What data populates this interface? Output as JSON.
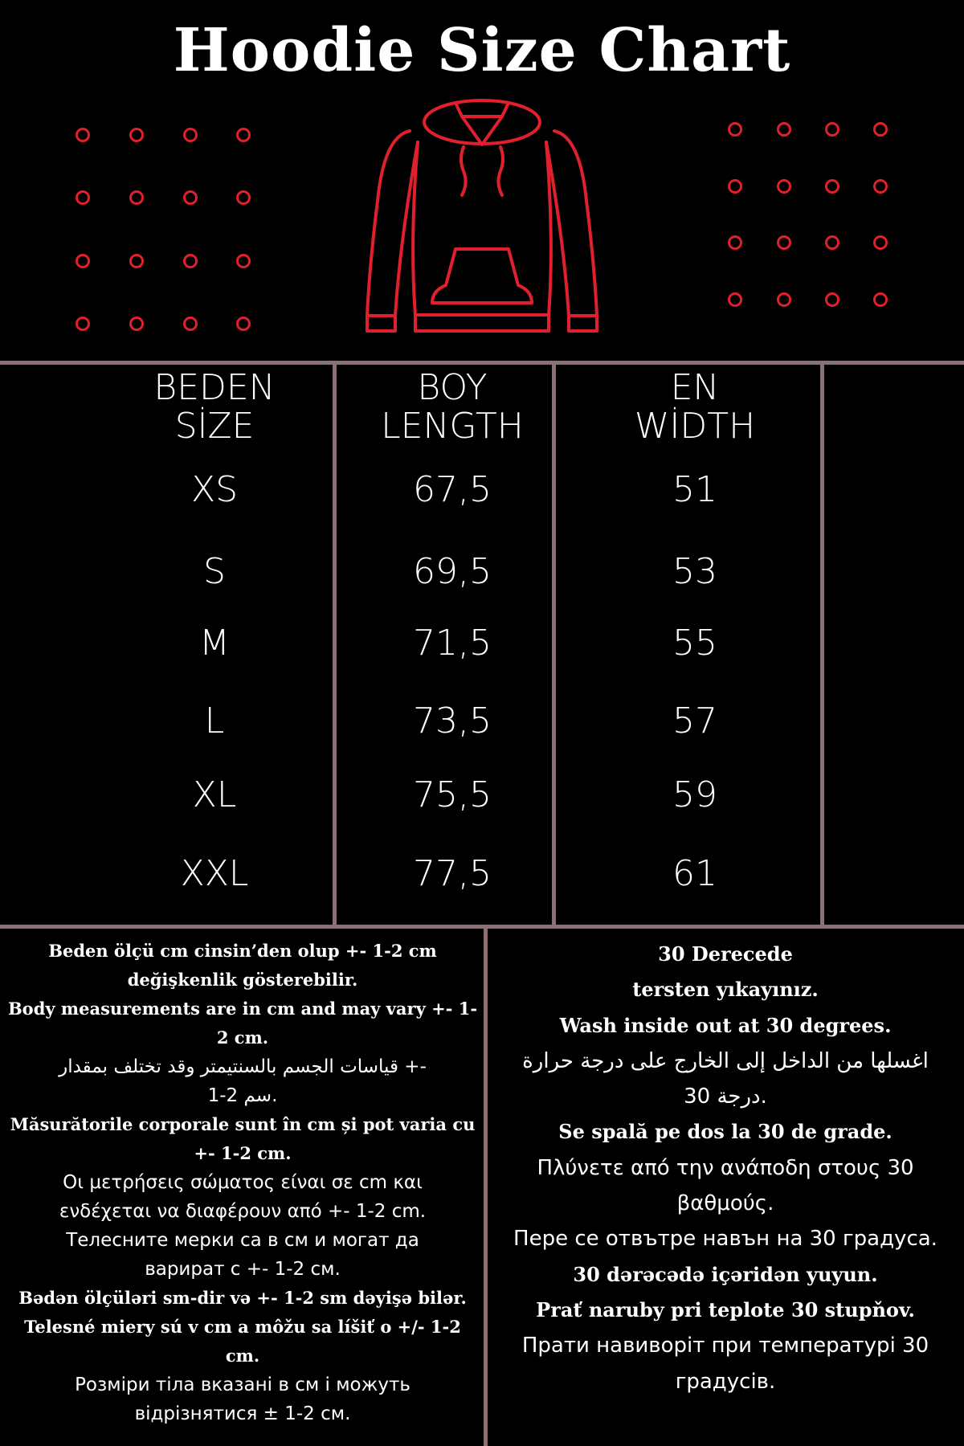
{
  "title": "Hoodie Size Chart",
  "colors": {
    "background": "#000000",
    "accent": "#e0202c",
    "divider": "#8c7074",
    "text": "#ffffff"
  },
  "icons": {
    "hoodie": "hoodie-outline-icon",
    "dots": "circle-dot-icon"
  },
  "table": {
    "headers": [
      {
        "line1": "BEDEN",
        "line2": "SİZE"
      },
      {
        "line1": "BOY",
        "line2": "LENGTH"
      },
      {
        "line1": "EN",
        "line2": "WİDTH"
      }
    ],
    "rows": [
      {
        "size": "XS",
        "length": "67,5",
        "width": "51"
      },
      {
        "size": "S",
        "length": "69,5",
        "width": "53"
      },
      {
        "size": "M",
        "length": "71,5",
        "width": "55"
      },
      {
        "size": "L",
        "length": "73,5",
        "width": "57"
      },
      {
        "size": "XL",
        "length": "75,5",
        "width": "59"
      },
      {
        "size": "XXL",
        "length": "77,5",
        "width": "61"
      }
    ]
  },
  "notes_left": [
    {
      "style": "serif",
      "text": "Beden ölçü cm cinsin’den olup +- 1-2 cm"
    },
    {
      "style": "serif",
      "text": "değişkenlik gösterebilir."
    },
    {
      "style": "serif",
      "text": "Body measurements are in cm and may vary +- 1-"
    },
    {
      "style": "serif",
      "text": "2 cm."
    },
    {
      "style": "sans",
      "text": "قياسات الجسم بالسنتيمتر وقد تختلف بمقدار +-"
    },
    {
      "style": "sans",
      "text": "1-2 سم."
    },
    {
      "style": "serif",
      "text": "Măsurătorile corporale sunt în cm și pot varia cu"
    },
    {
      "style": "serif",
      "text": "+- 1-2 cm."
    },
    {
      "style": "sans",
      "text": "Οι μετρήσεις σώματος είναι σε cm και"
    },
    {
      "style": "sans",
      "text": "ενδέχεται να διαφέρουν από +- 1-2 cm."
    },
    {
      "style": "sans",
      "text": "Телесните мерки са в см и могат да"
    },
    {
      "style": "sans",
      "text": "варират с +- 1-2 см."
    },
    {
      "style": "serif",
      "text": "Bədən ölçüləri sm-dir və +- 1-2 sm dəyişə bilər."
    },
    {
      "style": "serif",
      "text": "Telesné miery sú v cm a môžu sa líšiť o +/- 1-2"
    },
    {
      "style": "serif",
      "text": "cm."
    },
    {
      "style": "sans",
      "text": "Розміри тіла вказані в см і можуть"
    },
    {
      "style": "sans",
      "text": "відрізнятися ± 1-2 см."
    }
  ],
  "notes_right": [
    {
      "style": "serif",
      "text": "30 Derecede"
    },
    {
      "style": "serif",
      "text": "tersten yıkayınız."
    },
    {
      "style": "serif",
      "text": "Wash inside out at 30 degrees."
    },
    {
      "style": "sans",
      "text": "اغسلها من الداخل إلى الخارج على درجة حرارة"
    },
    {
      "style": "sans",
      "text": "30 درجة."
    },
    {
      "style": "serif",
      "text": "Se spală pe dos la 30 de grade."
    },
    {
      "style": "sans",
      "text": "Πλύνετε από την ανάποδη στους 30"
    },
    {
      "style": "sans",
      "text": "βαθμούς."
    },
    {
      "style": "sans",
      "text": "Пере се отвътре навън на 30 градуса."
    },
    {
      "style": "serif",
      "text": "30 dərəcədə içəridən yuyun."
    },
    {
      "style": "serif",
      "text": "Prať naruby pri teplote 30 stupňov."
    },
    {
      "style": "sans",
      "text": "Прати навиворіт при температурі 30"
    },
    {
      "style": "sans",
      "text": "градусів."
    }
  ]
}
